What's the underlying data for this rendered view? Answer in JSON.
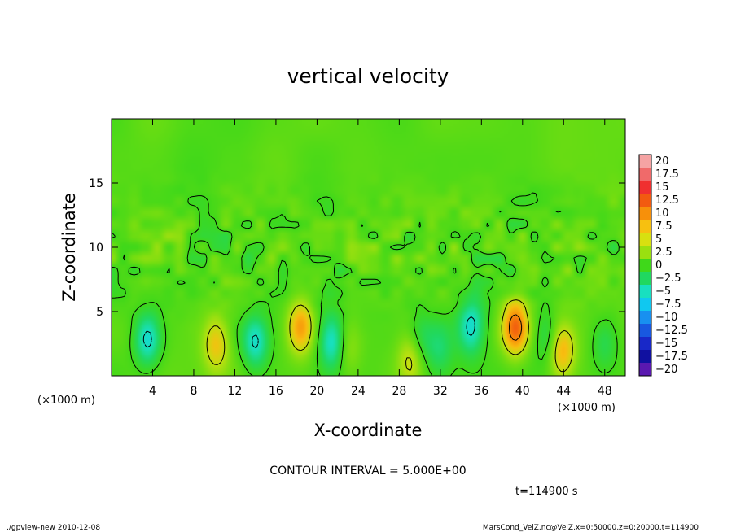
{
  "chart_data": {
    "type": "heatmap",
    "title": "vertical velocity",
    "xlabel": "X-coordinate",
    "ylabel": "Z-coordinate",
    "x_unit": "(×1000 m)",
    "y_unit": "(×1000 m)",
    "xlim": [
      0,
      50
    ],
    "ylim": [
      0,
      20
    ],
    "x_ticks": [
      4,
      8,
      12,
      16,
      20,
      24,
      28,
      32,
      36,
      40,
      44,
      48
    ],
    "y_ticks": [
      5,
      10,
      15
    ],
    "contour_interval_text": "CONTOUR INTERVAL = 5.000E+00",
    "time_text": "t=114900 s",
    "colorbar": {
      "labels": [
        "20",
        "17.5",
        "15",
        "12.5",
        "10",
        "7.5",
        "5",
        "2.5",
        "0",
        "-2.5",
        "-5",
        "-7.5",
        "-10",
        "-12.5",
        "-15",
        "-17.5",
        "-20"
      ],
      "colors": [
        "#f5a3a3",
        "#f06a6a",
        "#f03030",
        "#f25a10",
        "#f7900a",
        "#f7c010",
        "#d8e010",
        "#9ae010",
        "#3fd81a",
        "#20d860",
        "#18e0c0",
        "#10c8f0",
        "#1890f0",
        "#1858e0",
        "#1828c8",
        "#1010a0",
        "#5a18b0"
      ]
    },
    "background_value": 1.0,
    "features": [
      {
        "x": 3.5,
        "z": 2.8,
        "value": -6.5
      },
      {
        "x": 10.2,
        "z": 2.5,
        "value": 6.2
      },
      {
        "x": 14.0,
        "z": 2.6,
        "value": -6.0
      },
      {
        "x": 18.4,
        "z": 3.8,
        "value": 8.5
      },
      {
        "x": 21.5,
        "z": 2.6,
        "value": -6.5
      },
      {
        "x": 23.0,
        "z": 2.2,
        "value": 3.0
      },
      {
        "x": 29.2,
        "z": 1.4,
        "value": 5.5
      },
      {
        "x": 30.0,
        "z": 2.6,
        "value": -3.5
      },
      {
        "x": 32.0,
        "z": 2.0,
        "value": -3.0
      },
      {
        "x": 35.0,
        "z": 3.8,
        "value": -6.5
      },
      {
        "x": 39.3,
        "z": 3.8,
        "value": 11.0
      },
      {
        "x": 42.5,
        "z": 3.0,
        "value": -4.0
      },
      {
        "x": 43.8,
        "z": 2.0,
        "value": 7.5
      },
      {
        "x": 48.0,
        "z": 2.5,
        "value": -3.0
      }
    ]
  },
  "footer": {
    "left": "./gpview-new   2010-12-08",
    "right": "MarsCond_VelZ.nc@VelZ,x=0:50000,z=0:20000,t=114900"
  }
}
